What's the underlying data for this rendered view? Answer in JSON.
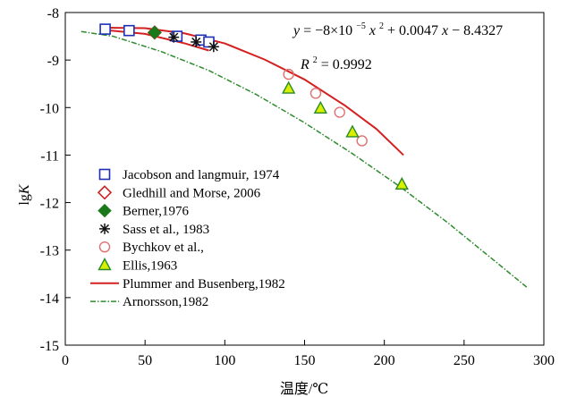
{
  "chart_data": {
    "type": "scatter",
    "xlabel": "温度/℃",
    "ylabel": "lgK",
    "ylabel_main": "lg",
    "ylabel_italic": "K",
    "xlim": [
      0,
      300
    ],
    "ylim": [
      -15,
      -8
    ],
    "xticks": [
      0,
      50,
      100,
      150,
      200,
      250,
      300
    ],
    "yticks": [
      -8,
      -9,
      -10,
      -11,
      -12,
      -13,
      -14,
      -15
    ],
    "xtick_labels": [
      "0",
      "50",
      "100",
      "150",
      "200",
      "250",
      "300"
    ],
    "ytick_labels": [
      "-8",
      "-9",
      "-10",
      "-11",
      "-12",
      "-13",
      "-14",
      "-15"
    ],
    "grid": false,
    "legend_position": "left",
    "annotations": {
      "equation_parts": [
        "y",
        " = −8×10",
        "−5",
        "x",
        "2",
        " + 0.0047",
        "x",
        " − 8.4327"
      ],
      "r2_parts": [
        "R",
        "2",
        " = 0.9992"
      ]
    },
    "series": [
      {
        "name": "Jacobson and langmuir, 1974",
        "marker": "square-open",
        "color": "#1f2fb5",
        "points": [
          [
            25,
            -8.35
          ],
          [
            40,
            -8.38
          ],
          [
            70,
            -8.5
          ],
          [
            85,
            -8.58
          ],
          [
            90,
            -8.62
          ]
        ]
      },
      {
        "name": "Gledhill and Morse, 2006",
        "marker": "diamond-open",
        "color": "#cc2222",
        "points": [
          [
            56,
            -8.42
          ]
        ]
      },
      {
        "name": "Berner,1976",
        "marker": "diamond-filled",
        "color": "#1a7a1a",
        "points": [
          [
            56,
            -8.42
          ]
        ]
      },
      {
        "name": "Sass et al., 1983",
        "marker": "asterisk",
        "color": "#111111",
        "points": [
          [
            68,
            -8.52
          ],
          [
            82,
            -8.62
          ],
          [
            93,
            -8.72
          ]
        ]
      },
      {
        "name": "Bychkov et al.,",
        "marker": "circle-open",
        "color": "#e07070",
        "points": [
          [
            140,
            -9.3
          ],
          [
            157,
            -9.7
          ],
          [
            172,
            -10.1
          ],
          [
            186,
            -10.7
          ]
        ]
      },
      {
        "name": "Ellis,1963",
        "marker": "triangle",
        "color": "#2a8a2a",
        "fill": "#d8f000",
        "points": [
          [
            140,
            -9.6
          ],
          [
            160,
            -10.02
          ],
          [
            180,
            -10.52
          ],
          [
            211,
            -11.62
          ]
        ]
      },
      {
        "name": "Plummer and Busenberg,1982",
        "marker": "line-solid",
        "color": "#d42020",
        "line_x": [
          10,
          30,
          50,
          70,
          90,
          110,
          130,
          150,
          170,
          190,
          212
        ],
        "points_main": [
          [
            25,
            -8.32
          ],
          [
            50,
            -8.33
          ],
          [
            75,
            -8.44
          ],
          [
            100,
            -8.65
          ],
          [
            125,
            -8.99
          ],
          [
            150,
            -9.41
          ],
          [
            175,
            -9.95
          ],
          [
            195,
            -10.45
          ],
          [
            212,
            -11.0
          ]
        ],
        "points_branch": [
          [
            25,
            -8.37
          ],
          [
            50,
            -8.45
          ],
          [
            75,
            -8.65
          ],
          [
            90,
            -8.8
          ]
        ]
      },
      {
        "name": "Arnorsson,1982",
        "marker": "line-dashdot",
        "color": "#2e8b2e",
        "points": [
          [
            10,
            -8.4
          ],
          [
            30,
            -8.5
          ],
          [
            60,
            -8.82
          ],
          [
            90,
            -9.22
          ],
          [
            120,
            -9.73
          ],
          [
            150,
            -10.32
          ],
          [
            180,
            -10.97
          ],
          [
            210,
            -11.67
          ],
          [
            240,
            -12.43
          ],
          [
            270,
            -13.25
          ],
          [
            290,
            -13.8
          ]
        ]
      }
    ]
  }
}
